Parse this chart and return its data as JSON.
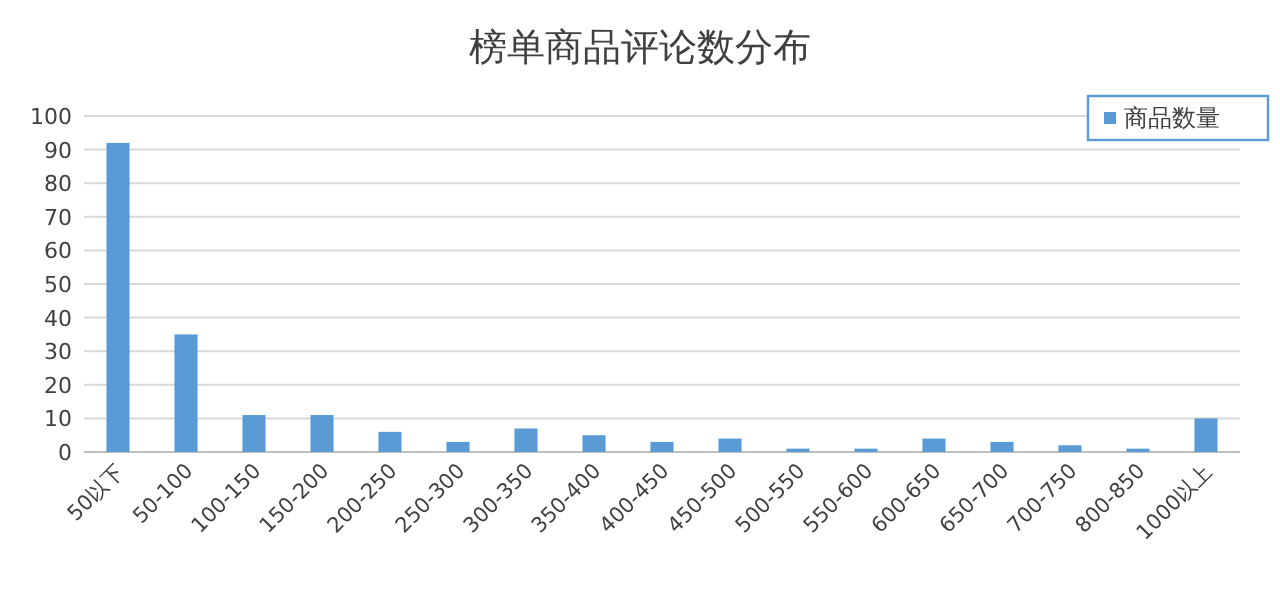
{
  "chart_data": {
    "type": "bar",
    "title": "榜单商品评论数分布",
    "categories": [
      "50以下",
      "50-100",
      "100-150",
      "150-200",
      "200-250",
      "250-300",
      "300-350",
      "350-400",
      "400-450",
      "450-500",
      "500-550",
      "550-600",
      "600-650",
      "650-700",
      "700-750",
      "800-850",
      "1000以上"
    ],
    "series": [
      {
        "name": "商品数量",
        "color": "#5b9bd5",
        "values": [
          92,
          35,
          11,
          11,
          6,
          3,
          7,
          5,
          3,
          4,
          1,
          1,
          4,
          3,
          2,
          1,
          10
        ]
      }
    ],
    "ylim": [
      0,
      100
    ],
    "yticks": [
      0,
      10,
      20,
      30,
      40,
      50,
      60,
      70,
      80,
      90,
      100
    ],
    "grid": "y",
    "legend": "top right"
  }
}
